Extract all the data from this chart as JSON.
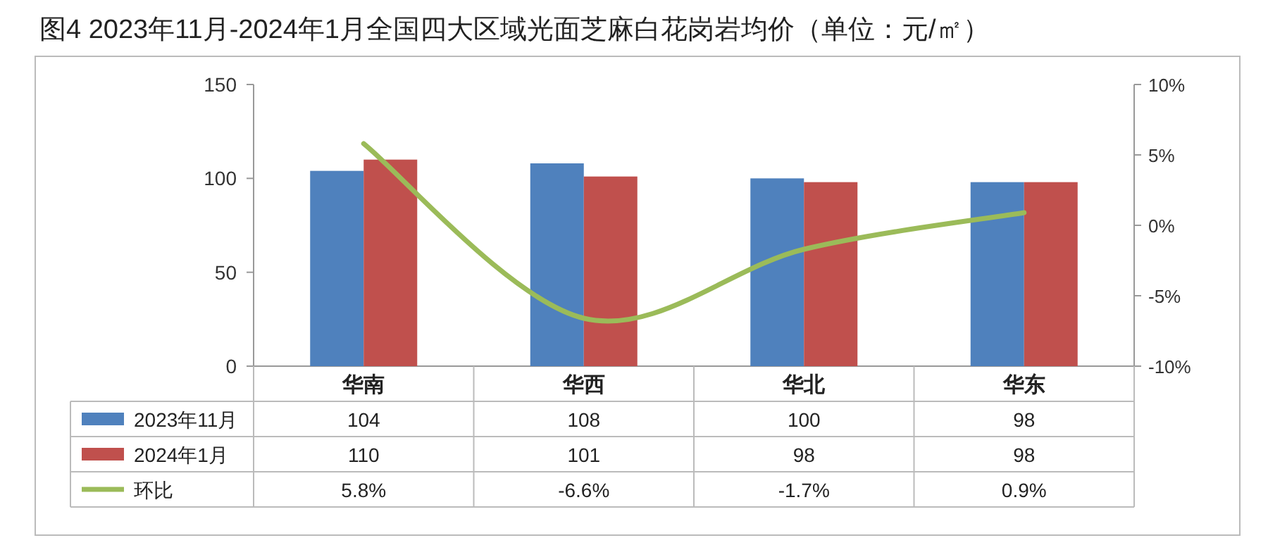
{
  "chart_data": {
    "type": "bar",
    "title": "图4 2023年11月-2024年1月全国四大区域光面芝麻白花岗岩均价（单位：元/㎡）",
    "categories": [
      "华南",
      "华西",
      "华北",
      "华东"
    ],
    "series": [
      {
        "name": "2023年11月",
        "color": "#4f81bd",
        "values": [
          104,
          108,
          100,
          98
        ],
        "value_labels": [
          "104",
          "108",
          "100",
          "98"
        ]
      },
      {
        "name": "2024年1月",
        "color": "#c0504d",
        "values": [
          110,
          101,
          98,
          98
        ],
        "value_labels": [
          "110",
          "101",
          "98",
          "98"
        ]
      },
      {
        "name": "环比",
        "type": "line",
        "axis": "y2",
        "color": "#9bbb59",
        "marker": "none",
        "values": [
          5.8,
          -6.6,
          -1.7,
          0.9
        ],
        "value_labels": [
          "5.8%",
          "-6.6%",
          "-1.7%",
          "0.9%"
        ]
      }
    ],
    "ylim": [
      0,
      150
    ],
    "yticks": [
      0,
      50,
      100,
      150
    ],
    "y2lim": [
      -10,
      10
    ],
    "y2ticks": [
      {
        "value": -10,
        "label": "-10%"
      },
      {
        "value": -5,
        "label": "-5%"
      },
      {
        "value": 0,
        "label": "0%"
      },
      {
        "value": 5,
        "label": "5%"
      },
      {
        "value": 10,
        "label": "10%"
      }
    ],
    "grid": false,
    "legend": "bottom"
  }
}
